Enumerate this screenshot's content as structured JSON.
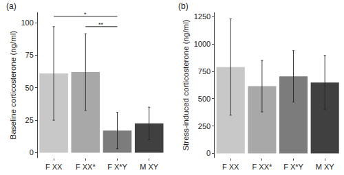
{
  "chart_data": [
    {
      "type": "bar",
      "title": "(a)",
      "y_label": "Baseline corticosterone (ng/ml)",
      "categories": [
        "F XX",
        "F XX*",
        "F X*Y",
        "M XY"
      ],
      "values": [
        61,
        62,
        17,
        22.5
      ],
      "error": [
        36,
        29.5,
        14,
        12.5
      ],
      "colors": [
        "#c8c8c8",
        "#a8a8a8",
        "#7c7c7c",
        "#404040"
      ],
      "ylim": [
        -4,
        108
      ],
      "yticks": [
        0,
        25,
        50,
        75,
        100
      ],
      "grid": false,
      "annotations": [
        {
          "from": "F XX",
          "to": "F X*Y",
          "y": 105,
          "label": "*"
        },
        {
          "from": "F XX*",
          "to": "F X*Y",
          "y": 97,
          "label": "**"
        }
      ]
    },
    {
      "type": "bar",
      "title": "(b)",
      "y_label": "Stress-induced corticosterone (ng/ml)",
      "categories": [
        "F XX",
        "F XX*",
        "F X*Y",
        "M XY"
      ],
      "values": [
        790,
        615,
        705,
        648
      ],
      "error": [
        440,
        235,
        235,
        248
      ],
      "colors": [
        "#c8c8c8",
        "#a8a8a8",
        "#7c7c7c",
        "#404040"
      ],
      "ylim": [
        -40,
        1290
      ],
      "yticks": [
        0,
        250,
        500,
        750,
        1000,
        1250
      ],
      "grid": false
    }
  ]
}
